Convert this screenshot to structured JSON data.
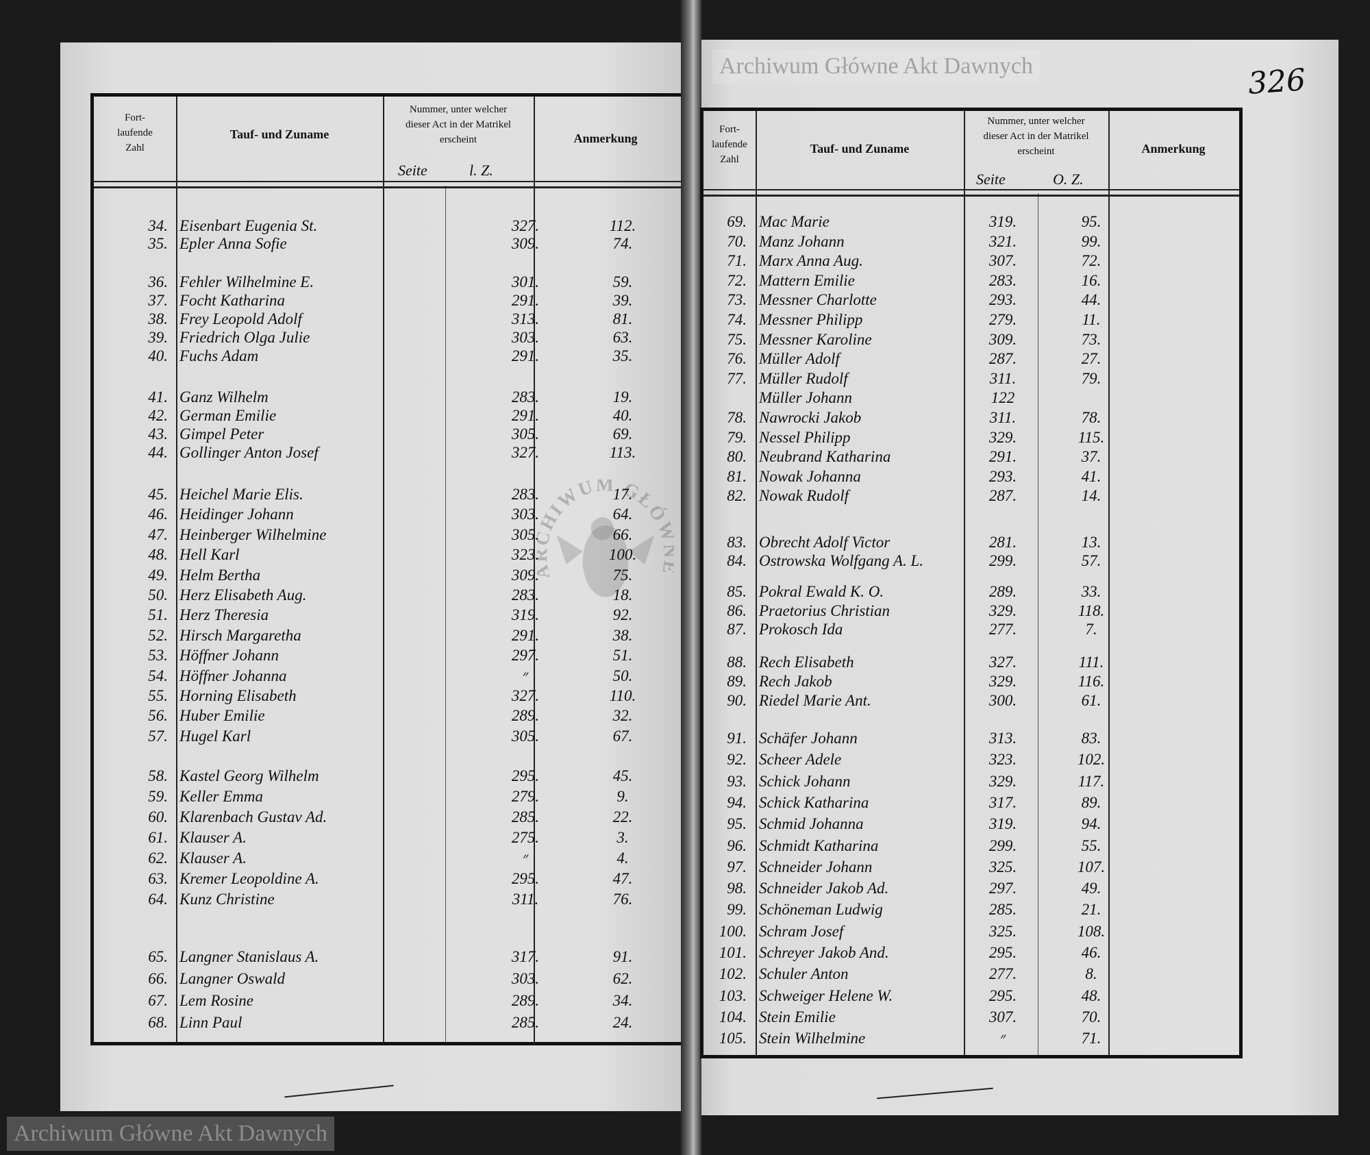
{
  "folio": "326",
  "watermark_text": "Archiwum Główne Akt Dawnych",
  "seal_text": "ARCHIWUM GŁÓWNE AKT DAWNYCH",
  "header": {
    "col_number": [
      "Fort-",
      "laufende",
      "Zahl"
    ],
    "col_name": "Tauf- und Zuname",
    "col_matrikel": [
      "Nummer, unter welcher",
      "dieser Act in der Matrikel",
      "erscheint"
    ],
    "col_remark": "Anmerkung"
  },
  "left_page": {
    "sub_seite": "Seite",
    "sub_lz": "l. Z.",
    "groups": [
      [
        [
          "34.",
          "Eisenbart Eugenia St.",
          "327.",
          "112."
        ],
        [
          "35.",
          "Epler Anna Sofie",
          "309.",
          "74."
        ]
      ],
      [
        [
          "36.",
          "Fehler Wilhelmine E.",
          "301.",
          "59."
        ],
        [
          "37.",
          "Focht Katharina",
          "291.",
          "39."
        ],
        [
          "38.",
          "Frey Leopold Adolf",
          "313.",
          "81."
        ],
        [
          "39.",
          "Friedrich Olga Julie",
          "303.",
          "63."
        ],
        [
          "40.",
          "Fuchs Adam",
          "291.",
          "35."
        ]
      ],
      [
        [
          "41.",
          "Ganz Wilhelm",
          "283.",
          "19."
        ],
        [
          "42.",
          "German Emilie",
          "291.",
          "40."
        ],
        [
          "43.",
          "Gimpel Peter",
          "305.",
          "69."
        ],
        [
          "44.",
          "Gollinger Anton Josef",
          "327.",
          "113."
        ]
      ],
      [
        [
          "45.",
          "Heichel Marie Elis.",
          "283.",
          "17."
        ],
        [
          "46.",
          "Heidinger Johann",
          "303.",
          "64."
        ],
        [
          "47.",
          "Heinberger Wilhelmine",
          "305.",
          "66."
        ],
        [
          "48.",
          "Hell Karl",
          "323.",
          "100."
        ],
        [
          "49.",
          "Helm Bertha",
          "309.",
          "75."
        ],
        [
          "50.",
          "Herz Elisabeth Aug.",
          "283.",
          "18."
        ],
        [
          "51.",
          "Herz Theresia",
          "319.",
          "92."
        ],
        [
          "52.",
          "Hirsch Margaretha",
          "291.",
          "38."
        ],
        [
          "53.",
          "Höffner Johann",
          "297.",
          "51."
        ],
        [
          "54.",
          "Höffner Johanna",
          "״",
          "50."
        ],
        [
          "55.",
          "Horning Elisabeth",
          "327.",
          "110."
        ],
        [
          "56.",
          "Huber Emilie",
          "289.",
          "32."
        ],
        [
          "57.",
          "Hugel Karl",
          "305.",
          "67."
        ]
      ],
      [
        [
          "58.",
          "Kastel Georg Wilhelm",
          "295.",
          "45."
        ],
        [
          "59.",
          "Keller Emma",
          "279.",
          "9."
        ],
        [
          "60.",
          "Klarenbach Gustav Ad.",
          "285.",
          "22."
        ],
        [
          "61.",
          "Klauser A.",
          "275.",
          "3."
        ],
        [
          "62.",
          "Klauser A.",
          "״",
          "4."
        ],
        [
          "63.",
          "Kremer Leopoldine A.",
          "295.",
          "47."
        ],
        [
          "64.",
          "Kunz Christine",
          "311.",
          "76."
        ]
      ],
      [
        [
          "65.",
          "Langner Stanislaus A.",
          "317.",
          "91."
        ],
        [
          "66.",
          "Langner Oswald",
          "303.",
          "62."
        ],
        [
          "67.",
          "Lem Rosine",
          "289.",
          "34."
        ],
        [
          "68.",
          "Linn Paul",
          "285.",
          "24."
        ]
      ]
    ]
  },
  "right_page": {
    "sub_seite": "Seite",
    "sub_lz": "O. Z.",
    "groups": [
      [
        [
          "69.",
          "Mac Marie",
          "319.",
          "95."
        ],
        [
          "70.",
          "Manz Johann",
          "321.",
          "99."
        ],
        [
          "71.",
          "Marx Anna Aug.",
          "307.",
          "72."
        ],
        [
          "72.",
          "Mattern Emilie",
          "283.",
          "16."
        ],
        [
          "73.",
          "Messner Charlotte",
          "293.",
          "44."
        ],
        [
          "74.",
          "Messner Philipp",
          "279.",
          "11."
        ],
        [
          "75.",
          "Messner Karoline",
          "309.",
          "73."
        ],
        [
          "76.",
          "Müller Adolf",
          "287.",
          "27."
        ],
        [
          "77.",
          "Müller Rudolf",
          "311.",
          "79."
        ],
        [
          "",
          "Müller Johann",
          "122",
          ""
        ],
        [
          "78.",
          "Nawrocki Jakob",
          "311.",
          "78."
        ],
        [
          "79.",
          "Nessel Philipp",
          "329.",
          "115."
        ],
        [
          "80.",
          "Neubrand Katharina",
          "291.",
          "37."
        ],
        [
          "81.",
          "Nowak Johanna",
          "293.",
          "41."
        ],
        [
          "82.",
          "Nowak Rudolf",
          "287.",
          "14."
        ]
      ],
      [
        [
          "83.",
          "Obrecht Adolf Victor",
          "281.",
          "13."
        ],
        [
          "84.",
          "Ostrowska Wolfgang A. L.",
          "299.",
          "57."
        ]
      ],
      [
        [
          "85.",
          "Pokral Ewald K. O.",
          "289.",
          "33."
        ],
        [
          "86.",
          "Praetorius Christian",
          "329.",
          "118."
        ],
        [
          "87.",
          "Prokosch Ida",
          "277.",
          "7."
        ]
      ],
      [
        [
          "88.",
          "Rech Elisabeth",
          "327.",
          "111."
        ],
        [
          "89.",
          "Rech Jakob",
          "329.",
          "116."
        ],
        [
          "90.",
          "Riedel Marie Ant.",
          "300.",
          "61."
        ]
      ],
      [
        [
          "91.",
          "Schäfer Johann",
          "313.",
          "83."
        ],
        [
          "92.",
          "Scheer Adele",
          "323.",
          "102."
        ],
        [
          "93.",
          "Schick Johann",
          "329.",
          "117."
        ],
        [
          "94.",
          "Schick Katharina",
          "317.",
          "89."
        ],
        [
          "95.",
          "Schmid Johanna",
          "319.",
          "94."
        ],
        [
          "96.",
          "Schmidt Katharina",
          "299.",
          "55."
        ],
        [
          "97.",
          "Schneider Johann",
          "325.",
          "107."
        ],
        [
          "98.",
          "Schneider Jakob Ad.",
          "297.",
          "49."
        ],
        [
          "99.",
          "Schöneman Ludwig",
          "285.",
          "21."
        ],
        [
          "100.",
          "Schram Josef",
          "325.",
          "108."
        ],
        [
          "101.",
          "Schreyer Jakob And.",
          "295.",
          "46."
        ],
        [
          "102.",
          "Schuler Anton",
          "277.",
          "8."
        ],
        [
          "103.",
          "Schweiger Helene W.",
          "295.",
          "48."
        ],
        [
          "104.",
          "Stein Emilie",
          "307.",
          "70."
        ],
        [
          "105.",
          "Stein Wilhelmine",
          "״",
          "71."
        ]
      ]
    ]
  }
}
